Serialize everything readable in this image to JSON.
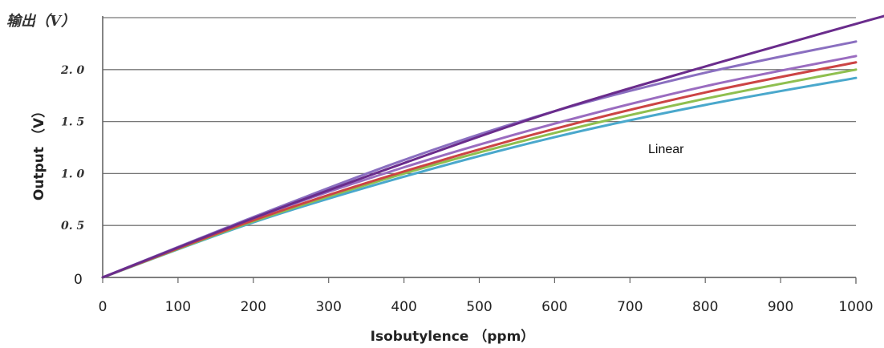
{
  "chart_data": {
    "type": "line",
    "top_label": "输出（V）",
    "xlabel": "Isobutylence （ppm）",
    "ylabel": "Output （V）",
    "annotation": "Linear",
    "xlim": [
      0,
      1000
    ],
    "ylim": [
      0,
      2.5
    ],
    "x_ticks": [
      "0",
      "100",
      "200",
      "300",
      "400",
      "500",
      "600",
      "700",
      "800",
      "900",
      "1000"
    ],
    "y_ticks": [
      {
        "value": 0,
        "label": "0"
      },
      {
        "value": 0.5,
        "label": "0. 5"
      },
      {
        "value": 1.0,
        "label": "1. 0"
      },
      {
        "value": 1.5,
        "label": "1. 5"
      },
      {
        "value": 2.0,
        "label": "2. 0"
      }
    ],
    "grid": "horizontal",
    "series": [
      {
        "color": "#6a2c8c",
        "x": [
          0,
          200,
          400,
          600,
          800,
          1000,
          1040
        ],
        "y": [
          0,
          0.57,
          1.1,
          1.6,
          2.03,
          2.44,
          2.52
        ]
      },
      {
        "color": "#8a6fc0",
        "x": [
          0,
          200,
          400,
          600,
          800,
          1000
        ],
        "y": [
          0,
          0.58,
          1.13,
          1.6,
          1.97,
          2.27
        ]
      },
      {
        "color": "#9a6cc0",
        "x": [
          0,
          200,
          400,
          600,
          800,
          1000
        ],
        "y": [
          0,
          0.57,
          1.06,
          1.48,
          1.84,
          2.13
        ]
      },
      {
        "color": "#cc4444",
        "x": [
          0,
          200,
          400,
          600,
          800,
          1000
        ],
        "y": [
          0,
          0.55,
          1.02,
          1.43,
          1.78,
          2.07
        ]
      },
      {
        "color": "#8fbf4f",
        "x": [
          0,
          200,
          400,
          600,
          800,
          1000
        ],
        "y": [
          0,
          0.54,
          1.0,
          1.39,
          1.72,
          2.0
        ]
      },
      {
        "color": "#4aa8cc",
        "x": [
          0,
          200,
          400,
          600,
          800,
          1000
        ],
        "y": [
          0,
          0.53,
          0.97,
          1.35,
          1.66,
          1.92
        ]
      }
    ]
  }
}
